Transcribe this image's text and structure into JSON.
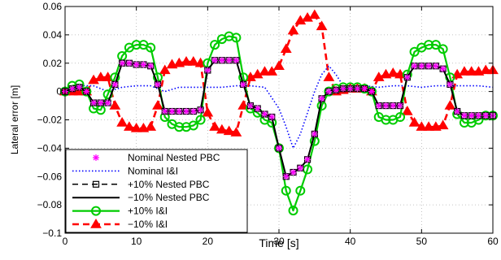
{
  "chart_data": {
    "type": "line",
    "title": "",
    "xlabel": "Time [s]",
    "ylabel": "Lateral error [m]",
    "xlim": [
      0,
      60
    ],
    "ylim": [
      -0.1,
      0.06
    ],
    "xticks": [
      "0",
      "10",
      "20",
      "30",
      "40",
      "50",
      "60"
    ],
    "yticks": [
      "0.06",
      "0.04",
      "0.02",
      "0",
      "−0.02",
      "−0.04",
      "−0.06",
      "−0.08",
      "−0.1"
    ],
    "grid": "on",
    "legend_position": "bottom-left",
    "series": [
      {
        "name": "Nominal Nested PBC",
        "color": "#ff00ff",
        "style": "markers-star",
        "x": [
          0,
          1,
          2,
          3,
          4,
          5,
          6,
          7,
          8,
          9,
          10,
          11,
          12,
          13,
          14,
          15,
          16,
          17,
          18,
          19,
          20,
          21,
          22,
          23,
          24,
          25,
          26,
          27,
          28,
          29,
          30,
          31,
          32,
          33,
          34,
          35,
          36,
          37,
          38,
          39,
          40,
          41,
          42,
          43,
          44,
          45,
          46,
          47,
          48,
          49,
          50,
          51,
          52,
          53,
          54,
          55,
          56,
          57,
          58,
          59,
          60
        ],
        "y": [
          0,
          0.002,
          0.003,
          0,
          -0.008,
          -0.008,
          -0.008,
          0.005,
          0.02,
          0.02,
          0.019,
          0.019,
          0.018,
          0.005,
          -0.014,
          -0.014,
          -0.014,
          -0.014,
          -0.014,
          -0.013,
          0.015,
          0.022,
          0.022,
          0.022,
          0.022,
          0.005,
          -0.01,
          -0.012,
          -0.016,
          -0.018,
          -0.04,
          -0.06,
          -0.057,
          -0.054,
          -0.048,
          -0.03,
          -0.005,
          0,
          0.001,
          0.002,
          0.002,
          0.002,
          0.002,
          0,
          -0.01,
          -0.01,
          -0.01,
          -0.01,
          0.01,
          0.018,
          0.018,
          0.018,
          0.018,
          0.016,
          0.005,
          -0.014,
          -0.017,
          -0.017,
          -0.017,
          -0.017,
          -0.017
        ]
      },
      {
        "name": "Nominal I&I",
        "color": "#0000ff",
        "style": "dotted",
        "x": [
          0,
          2,
          4,
          6,
          8,
          10,
          12,
          14,
          16,
          18,
          20,
          22,
          24,
          26,
          28,
          30,
          31,
          32,
          33,
          34,
          35,
          36,
          37,
          38,
          39,
          40,
          42,
          44,
          46,
          48,
          50,
          52,
          54,
          56,
          58,
          60
        ],
        "y": [
          0,
          0.004,
          0.004,
          0,
          0.003,
          0.004,
          0.004,
          0,
          0.003,
          0.003,
          0.003,
          0.003,
          0.004,
          0.004,
          0.003,
          -0.012,
          -0.025,
          -0.04,
          -0.03,
          -0.015,
          0,
          0.012,
          0.018,
          0.012,
          0.004,
          0.003,
          0.004,
          0.003,
          0.004,
          0.004,
          0.003,
          0.004,
          0.004,
          0.004,
          0.004,
          0.003
        ]
      },
      {
        "name": "+10% Nested PBC",
        "color": "#000000",
        "style": "dashed-square",
        "x": [
          0,
          1,
          2,
          3,
          4,
          5,
          6,
          7,
          8,
          9,
          10,
          11,
          12,
          13,
          14,
          15,
          16,
          17,
          18,
          19,
          20,
          21,
          22,
          23,
          24,
          25,
          26,
          27,
          28,
          29,
          30,
          31,
          32,
          33,
          34,
          35,
          36,
          37,
          38,
          39,
          40,
          41,
          42,
          43,
          44,
          45,
          46,
          47,
          48,
          49,
          50,
          51,
          52,
          53,
          54,
          55,
          56,
          57,
          58,
          59,
          60
        ],
        "y": [
          0,
          0.002,
          0.003,
          0,
          -0.008,
          -0.008,
          -0.008,
          0.005,
          0.02,
          0.02,
          0.019,
          0.019,
          0.018,
          0.005,
          -0.014,
          -0.014,
          -0.014,
          -0.014,
          -0.014,
          -0.013,
          0.015,
          0.022,
          0.022,
          0.022,
          0.022,
          0.005,
          -0.01,
          -0.012,
          -0.016,
          -0.018,
          -0.04,
          -0.06,
          -0.057,
          -0.054,
          -0.048,
          -0.03,
          -0.005,
          0,
          0.001,
          0.002,
          0.002,
          0.002,
          0.002,
          0,
          -0.01,
          -0.01,
          -0.01,
          -0.01,
          0.01,
          0.018,
          0.018,
          0.018,
          0.018,
          0.016,
          0.005,
          -0.014,
          -0.017,
          -0.017,
          -0.017,
          -0.017,
          -0.017
        ]
      },
      {
        "name": "−10% Nested PBC",
        "color": "#000000",
        "style": "solid",
        "x": [
          0,
          1,
          2,
          3,
          4,
          5,
          6,
          7,
          8,
          9,
          10,
          11,
          12,
          13,
          14,
          15,
          16,
          17,
          18,
          19,
          20,
          21,
          22,
          23,
          24,
          25,
          26,
          27,
          28,
          29,
          30,
          31,
          32,
          33,
          34,
          35,
          36,
          37,
          38,
          39,
          40,
          41,
          42,
          43,
          44,
          45,
          46,
          47,
          48,
          49,
          50,
          51,
          52,
          53,
          54,
          55,
          56,
          57,
          58,
          59,
          60
        ],
        "y": [
          0,
          0.002,
          0.003,
          0,
          -0.008,
          -0.008,
          -0.008,
          0.005,
          0.02,
          0.02,
          0.019,
          0.019,
          0.018,
          0.005,
          -0.014,
          -0.014,
          -0.014,
          -0.014,
          -0.014,
          -0.013,
          0.015,
          0.022,
          0.022,
          0.022,
          0.022,
          0.005,
          -0.01,
          -0.012,
          -0.016,
          -0.018,
          -0.04,
          -0.06,
          -0.057,
          -0.054,
          -0.048,
          -0.03,
          -0.005,
          0,
          0.001,
          0.002,
          0.002,
          0.002,
          0.002,
          0,
          -0.01,
          -0.01,
          -0.01,
          -0.01,
          0.01,
          0.018,
          0.018,
          0.018,
          0.018,
          0.016,
          0.005,
          -0.014,
          -0.017,
          -0.017,
          -0.017,
          -0.017,
          -0.017
        ]
      },
      {
        "name": "+10% I&I",
        "color": "#00cc00",
        "style": "solid-circle",
        "x": [
          0,
          1,
          2,
          3,
          4,
          5,
          6,
          7,
          8,
          9,
          10,
          11,
          12,
          13,
          14,
          15,
          16,
          17,
          18,
          19,
          20,
          21,
          22,
          23,
          24,
          25,
          26,
          27,
          28,
          29,
          30,
          31,
          32,
          33,
          34,
          35,
          36,
          37,
          38,
          39,
          40,
          41,
          42,
          43,
          44,
          45,
          46,
          47,
          48,
          49,
          50,
          51,
          52,
          53,
          54,
          55,
          56,
          57,
          58,
          59,
          60
        ],
        "y": [
          0,
          0.004,
          0.005,
          0,
          -0.012,
          -0.013,
          -0.002,
          0.01,
          0.025,
          0.031,
          0.033,
          0.033,
          0.031,
          0.01,
          -0.018,
          -0.023,
          -0.025,
          -0.025,
          -0.024,
          -0.02,
          0.02,
          0.033,
          0.037,
          0.039,
          0.038,
          0.01,
          -0.012,
          -0.015,
          -0.02,
          -0.022,
          -0.04,
          -0.07,
          -0.084,
          -0.07,
          -0.055,
          -0.035,
          -0.01,
          0,
          0.002,
          0.003,
          0.003,
          0.003,
          0.002,
          0,
          -0.018,
          -0.02,
          -0.02,
          -0.018,
          0.012,
          0.028,
          0.031,
          0.033,
          0.033,
          0.03,
          0.01,
          -0.016,
          -0.022,
          -0.022,
          -0.02,
          -0.017,
          -0.017
        ]
      },
      {
        "name": "−10% I&I",
        "color": "#ff0000",
        "style": "dashed-triangle",
        "x": [
          0,
          1,
          2,
          3,
          4,
          5,
          6,
          7,
          8,
          9,
          10,
          11,
          12,
          13,
          14,
          15,
          16,
          17,
          18,
          19,
          20,
          21,
          22,
          23,
          24,
          25,
          26,
          27,
          28,
          29,
          30,
          31,
          32,
          33,
          34,
          35,
          36,
          37,
          38,
          39,
          40,
          41,
          42,
          43,
          44,
          45,
          46,
          47,
          48,
          49,
          50,
          51,
          52,
          53,
          54,
          55,
          56,
          57,
          58,
          59,
          60
        ],
        "y": [
          0,
          0,
          0,
          0,
          0.008,
          0.01,
          0.01,
          -0.01,
          -0.022,
          -0.025,
          -0.026,
          -0.026,
          -0.025,
          -0.01,
          0.015,
          0.019,
          0.02,
          0.021,
          0.021,
          0.02,
          -0.015,
          -0.025,
          -0.027,
          -0.028,
          -0.029,
          -0.01,
          0.01,
          0.012,
          0.014,
          0.014,
          0.018,
          0.03,
          0.043,
          0.05,
          0.052,
          0.054,
          0.046,
          0.01,
          0,
          0.001,
          0.002,
          0.002,
          0.002,
          0,
          0.01,
          0.012,
          0.013,
          0.012,
          -0.014,
          -0.022,
          -0.025,
          -0.025,
          -0.025,
          -0.024,
          -0.01,
          0.012,
          0.014,
          0.014,
          0.014,
          0.015,
          0.015
        ]
      }
    ]
  }
}
